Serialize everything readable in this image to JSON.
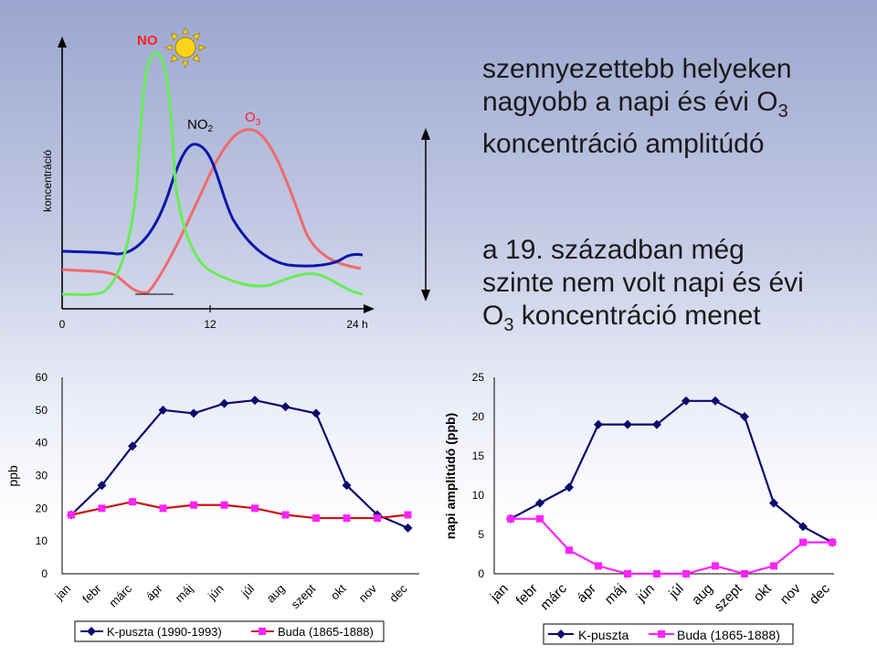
{
  "top_diagram": {
    "y_label": "koncentráció",
    "x_ticks": [
      "0",
      "12",
      "24 h"
    ],
    "labels": {
      "no": "NO",
      "no2": "NO",
      "no2_sub": "2",
      "o3": "O",
      "o3_sub": "3"
    },
    "colors": {
      "no": "#66ee55",
      "no2": "#0b18a8",
      "o3": "#f06a6a",
      "sun": "#ffd21a"
    }
  },
  "text_top": {
    "line1": "szennyezettebb helyeken",
    "line2a": "nagyobb a napi és évi O",
    "line2sub": "3",
    "line3": "koncentráció amplitúdó"
  },
  "text_mid": {
    "line1": "a 19. században még",
    "line2": "szinte nem volt napi és évi",
    "line3a": "O",
    "line3sub": "3",
    "line3b": " koncentráció menet"
  },
  "chart_data": [
    {
      "type": "line",
      "title": "",
      "ylabel": "ppb",
      "xlabel": "",
      "ylim": [
        0,
        60
      ],
      "yticks": [
        "0",
        "10",
        "20",
        "30",
        "40",
        "50",
        "60"
      ],
      "categories": [
        "jan",
        "febr",
        "márc",
        "ápr",
        "máj",
        "jún",
        "júl",
        "aug",
        "szept",
        "okt",
        "nov",
        "dec"
      ],
      "series": [
        {
          "name": "K-puszta (1990-1993)",
          "color": "#0a0a6e",
          "marker": "diamond",
          "values": [
            18,
            27,
            39,
            50,
            49,
            52,
            53,
            51,
            49,
            27,
            18,
            14
          ]
        },
        {
          "name": "Buda (1865-1888)",
          "color": "#cc1111",
          "marker": "square",
          "marker_color": "#ff22ff",
          "values": [
            18,
            20,
            22,
            20,
            21,
            21,
            20,
            18,
            17,
            17,
            17,
            18
          ]
        }
      ]
    },
    {
      "type": "line",
      "title": "",
      "ylabel": "napi amplitúdó (ppb)",
      "xlabel": "",
      "ylim": [
        0,
        25
      ],
      "yticks": [
        "0",
        "5",
        "10",
        "15",
        "20",
        "25"
      ],
      "categories": [
        "jan",
        "febr",
        "márc",
        "ápr",
        "máj",
        "jún",
        "júl",
        "aug",
        "szept",
        "okt",
        "nov",
        "dec"
      ],
      "series": [
        {
          "name": "K-puszta",
          "color": "#0a0a6e",
          "marker": "diamond",
          "values": [
            7,
            9,
            11,
            19,
            19,
            19,
            22,
            22,
            20,
            9,
            6,
            4
          ]
        },
        {
          "name": "Buda (1865-1888)",
          "color": "#ff22ff",
          "marker": "square",
          "values": [
            7,
            7,
            3,
            1,
            0,
            0,
            0,
            1,
            0,
            1,
            4,
            4
          ]
        }
      ]
    }
  ]
}
